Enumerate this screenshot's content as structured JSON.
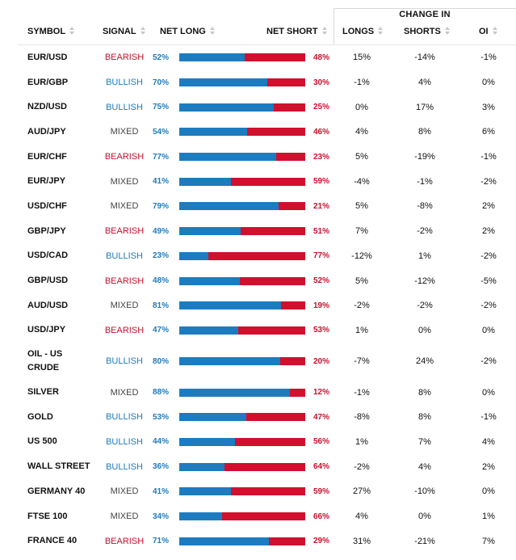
{
  "colors": {
    "bullish": "#1f7bbd",
    "bearish": "#c8102e",
    "bar_long": "#1c7cbf",
    "bar_short": "#d0102d"
  },
  "header": {
    "symbol": "SYMBOL",
    "signal": "SIGNAL",
    "net_long": "NET LONG",
    "net_short": "NET SHORT",
    "change_in": "CHANGE IN",
    "longs": "LONGS",
    "shorts": "SHORTS",
    "oi": "OI"
  },
  "rows": [
    {
      "symbol": "EUR/USD",
      "signal": "BEARISH",
      "net_long": "52%",
      "net_short": "48%",
      "long_fraction": 0.52,
      "longs": "15%",
      "shorts": "-14%",
      "oi": "-1%"
    },
    {
      "symbol": "EUR/GBP",
      "signal": "BULLISH",
      "net_long": "70%",
      "net_short": "30%",
      "long_fraction": 0.7,
      "longs": "-1%",
      "shorts": "4%",
      "oi": "0%"
    },
    {
      "symbol": "NZD/USD",
      "signal": "BULLISH",
      "net_long": "75%",
      "net_short": "25%",
      "long_fraction": 0.75,
      "longs": "0%",
      "shorts": "17%",
      "oi": "3%"
    },
    {
      "symbol": "AUD/JPY",
      "signal": "MIXED",
      "net_long": "54%",
      "net_short": "46%",
      "long_fraction": 0.54,
      "longs": "4%",
      "shorts": "8%",
      "oi": "6%"
    },
    {
      "symbol": "EUR/CHF",
      "signal": "BEARISH",
      "net_long": "77%",
      "net_short": "23%",
      "long_fraction": 0.77,
      "longs": "5%",
      "shorts": "-19%",
      "oi": "-1%"
    },
    {
      "symbol": "EUR/JPY",
      "signal": "MIXED",
      "net_long": "41%",
      "net_short": "59%",
      "long_fraction": 0.41,
      "longs": "-4%",
      "shorts": "-1%",
      "oi": "-2%"
    },
    {
      "symbol": "USD/CHF",
      "signal": "MIXED",
      "net_long": "79%",
      "net_short": "21%",
      "long_fraction": 0.79,
      "longs": "5%",
      "shorts": "-8%",
      "oi": "2%"
    },
    {
      "symbol": "GBP/JPY",
      "signal": "BEARISH",
      "net_long": "49%",
      "net_short": "51%",
      "long_fraction": 0.49,
      "longs": "7%",
      "shorts": "-2%",
      "oi": "2%"
    },
    {
      "symbol": "USD/CAD",
      "signal": "BULLISH",
      "net_long": "23%",
      "net_short": "77%",
      "long_fraction": 0.23,
      "longs": "-12%",
      "shorts": "1%",
      "oi": "-2%"
    },
    {
      "symbol": "GBP/USD",
      "signal": "BEARISH",
      "net_long": "48%",
      "net_short": "52%",
      "long_fraction": 0.48,
      "longs": "5%",
      "shorts": "-12%",
      "oi": "-5%"
    },
    {
      "symbol": "AUD/USD",
      "signal": "MIXED",
      "net_long": "81%",
      "net_short": "19%",
      "long_fraction": 0.81,
      "longs": "-2%",
      "shorts": "-2%",
      "oi": "-2%"
    },
    {
      "symbol": "USD/JPY",
      "signal": "BEARISH",
      "net_long": "47%",
      "net_short": "53%",
      "long_fraction": 0.47,
      "longs": "1%",
      "shorts": "0%",
      "oi": "0%"
    },
    {
      "symbol": "OIL - US CRUDE",
      "signal": "BULLISH",
      "net_long": "80%",
      "net_short": "20%",
      "long_fraction": 0.8,
      "longs": "-7%",
      "shorts": "24%",
      "oi": "-2%"
    },
    {
      "symbol": "SILVER",
      "signal": "MIXED",
      "net_long": "88%",
      "net_short": "12%",
      "long_fraction": 0.88,
      "longs": "-1%",
      "shorts": "8%",
      "oi": "0%"
    },
    {
      "symbol": "GOLD",
      "signal": "BULLISH",
      "net_long": "53%",
      "net_short": "47%",
      "long_fraction": 0.53,
      "longs": "-8%",
      "shorts": "8%",
      "oi": "-1%"
    },
    {
      "symbol": "US 500",
      "signal": "BULLISH",
      "net_long": "44%",
      "net_short": "56%",
      "long_fraction": 0.44,
      "longs": "1%",
      "shorts": "7%",
      "oi": "4%"
    },
    {
      "symbol": "WALL STREET",
      "signal": "BULLISH",
      "net_long": "36%",
      "net_short": "64%",
      "long_fraction": 0.36,
      "longs": "-2%",
      "shorts": "4%",
      "oi": "2%"
    },
    {
      "symbol": "GERMANY 40",
      "signal": "MIXED",
      "net_long": "41%",
      "net_short": "59%",
      "long_fraction": 0.41,
      "longs": "27%",
      "shorts": "-10%",
      "oi": "0%"
    },
    {
      "symbol": "FTSE 100",
      "signal": "MIXED",
      "net_long": "34%",
      "net_short": "66%",
      "long_fraction": 0.34,
      "longs": "4%",
      "shorts": "0%",
      "oi": "1%"
    },
    {
      "symbol": "FRANCE 40",
      "signal": "BEARISH",
      "net_long": "71%",
      "net_short": "29%",
      "long_fraction": 0.71,
      "longs": "31%",
      "shorts": "-21%",
      "oi": "7%"
    }
  ]
}
